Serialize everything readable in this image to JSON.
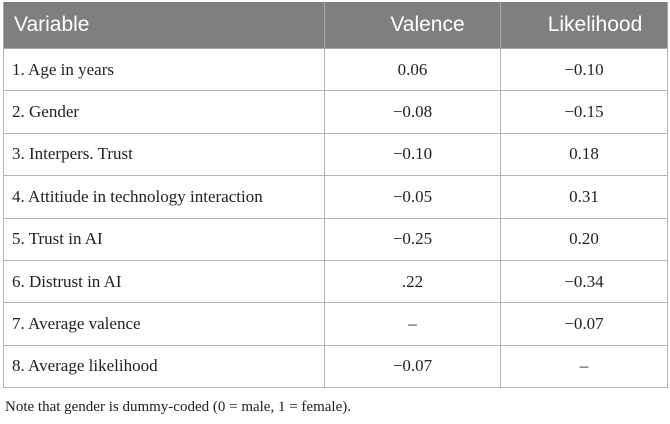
{
  "table": {
    "headers": [
      "Variable",
      "Valence",
      "Likelihood"
    ],
    "rows": [
      [
        "1. Age in years",
        "0.06",
        "−0.10"
      ],
      [
        "2. Gender",
        "−0.08",
        "−0.15"
      ],
      [
        "3. Interpers. Trust",
        "−0.10",
        "0.18"
      ],
      [
        "4. Attitiude in technology interaction",
        "−0.05",
        "0.31"
      ],
      [
        "5. Trust in AI",
        "−0.25",
        "0.20"
      ],
      [
        "6. Distrust in AI",
        ".22",
        "−0.34"
      ],
      [
        "7. Average valence",
        "–",
        "−0.07"
      ],
      [
        "8. Average likelihood",
        "−0.07",
        "–"
      ]
    ]
  },
  "note": "Note that gender is dummy-coded (0 = male, 1 = female).",
  "colors": {
    "header_bg": "#7f7f7f",
    "header_text": "#ffffff",
    "grid": "#b5b5b5",
    "body_text": "#222222"
  }
}
